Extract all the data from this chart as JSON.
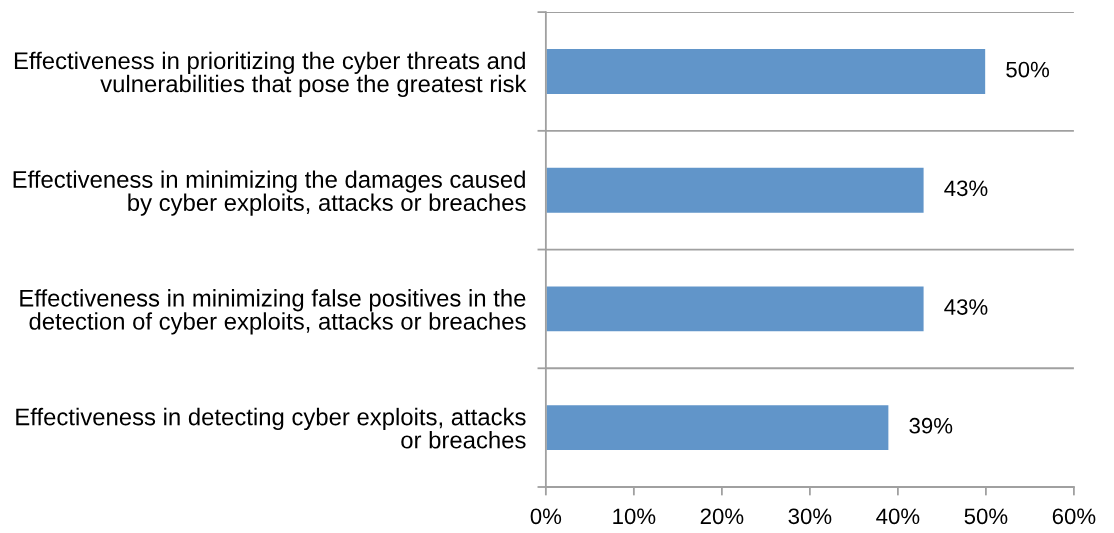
{
  "chart_data": {
    "type": "bar",
    "orientation": "horizontal",
    "categories": [
      "Effectiveness in prioritizing the cyber threats and\nvulnerabilities that pose the greatest risk",
      "Effectiveness in minimizing the damages caused\nby cyber exploits, attacks or breaches",
      "Effectiveness in minimizing false positives in the\ndetection of cyber exploits, attacks or breaches",
      "Effectiveness in detecting cyber exploits, attacks\nor breaches"
    ],
    "values": [
      50,
      43,
      43,
      39
    ],
    "color": "#6195c9",
    "value_labels": [
      "50%",
      "43%",
      "43%",
      "39%"
    ],
    "xlim": [
      0,
      60
    ],
    "xticks": [
      {
        "value": 0,
        "label": "0%"
      },
      {
        "value": 10,
        "label": "10%"
      },
      {
        "value": 20,
        "label": "20%"
      },
      {
        "value": 30,
        "label": "30%"
      },
      {
        "value": 40,
        "label": "40%"
      },
      {
        "value": 50,
        "label": "50%"
      },
      {
        "value": 60,
        "label": "60%"
      }
    ],
    "grid": "y",
    "legend": false
  }
}
